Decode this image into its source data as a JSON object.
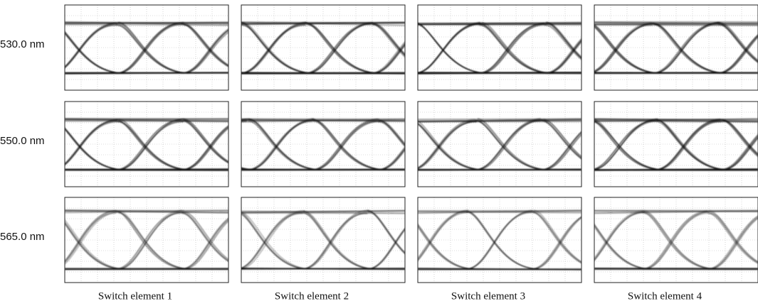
{
  "row_labels": [
    "530.0 nm",
    "550.0 nm",
    "565.0 nm"
  ],
  "column_labels": [
    "Switch element 1",
    "Switch element 2",
    "Switch element 3",
    "Switch element 4"
  ]
}
